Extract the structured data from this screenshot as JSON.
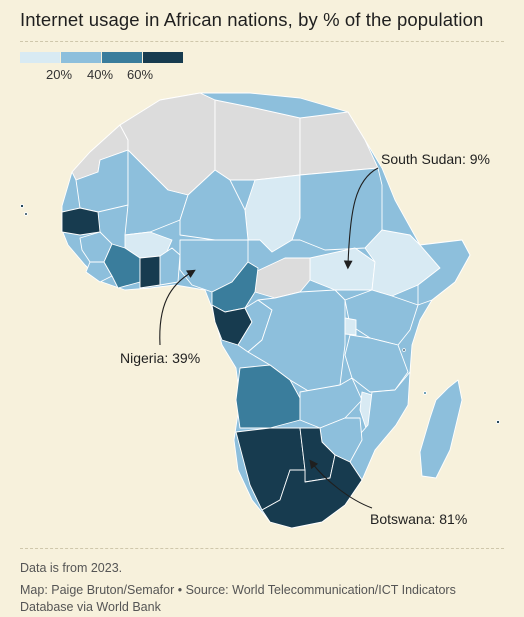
{
  "title": "Internet usage in African nations, by % of the population",
  "legend": {
    "colors": [
      "#d8eaf3",
      "#8dbfdc",
      "#3a7d9c",
      "#173b4f"
    ],
    "ticks": [
      "20%",
      "40%",
      "60%"
    ]
  },
  "colors": {
    "background": "#f7f1dc",
    "no_data": "#dcdcdc",
    "border": "#ffffff"
  },
  "callouts": {
    "south_sudan": "South Sudan: 9%",
    "nigeria": "Nigeria: 39%",
    "botswana": "Botswana: 81%"
  },
  "footer": {
    "note": "Data is from 2023.",
    "source": "Map: Paige Bruton/Semafor • Source: World Telecommunication/ICT Indicators Database via World Bank"
  }
}
